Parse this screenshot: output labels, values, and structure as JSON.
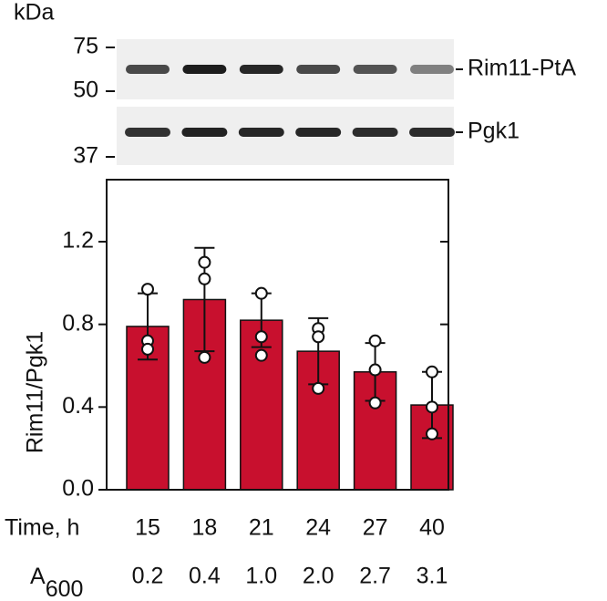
{
  "blot": {
    "unit": "kDa",
    "markers": [
      "75",
      "50",
      "37"
    ],
    "bands": [
      "Rim11-PtA",
      "Pgk1"
    ]
  },
  "chart_data": {
    "type": "bar",
    "ylabel": "Rim11/Pgk1",
    "row_labels": {
      "time": "Time, h",
      "a600": {
        "main": "A",
        "sub": "600"
      }
    },
    "categories": [
      "15",
      "18",
      "21",
      "24",
      "27",
      "40"
    ],
    "a600": [
      "0.2",
      "0.4",
      "1.0",
      "2.0",
      "2.7",
      "3.1"
    ],
    "values": [
      0.79,
      0.92,
      0.82,
      0.67,
      0.57,
      0.41
    ],
    "errors": [
      0.16,
      0.25,
      0.13,
      0.16,
      0.14,
      0.16
    ],
    "points": [
      [
        0.97,
        0.72,
        0.68
      ],
      [
        1.1,
        1.02,
        0.64
      ],
      [
        0.95,
        0.74,
        0.65
      ],
      [
        0.78,
        0.74,
        0.49
      ],
      [
        0.72,
        0.58,
        0.42
      ],
      [
        0.57,
        0.4,
        0.27
      ]
    ],
    "color": "#c8102e",
    "ylim": [
      0,
      1.5
    ],
    "yticks": [
      {
        "value": 0,
        "label": "0.0"
      },
      0.4,
      0.8,
      1.2
    ]
  }
}
